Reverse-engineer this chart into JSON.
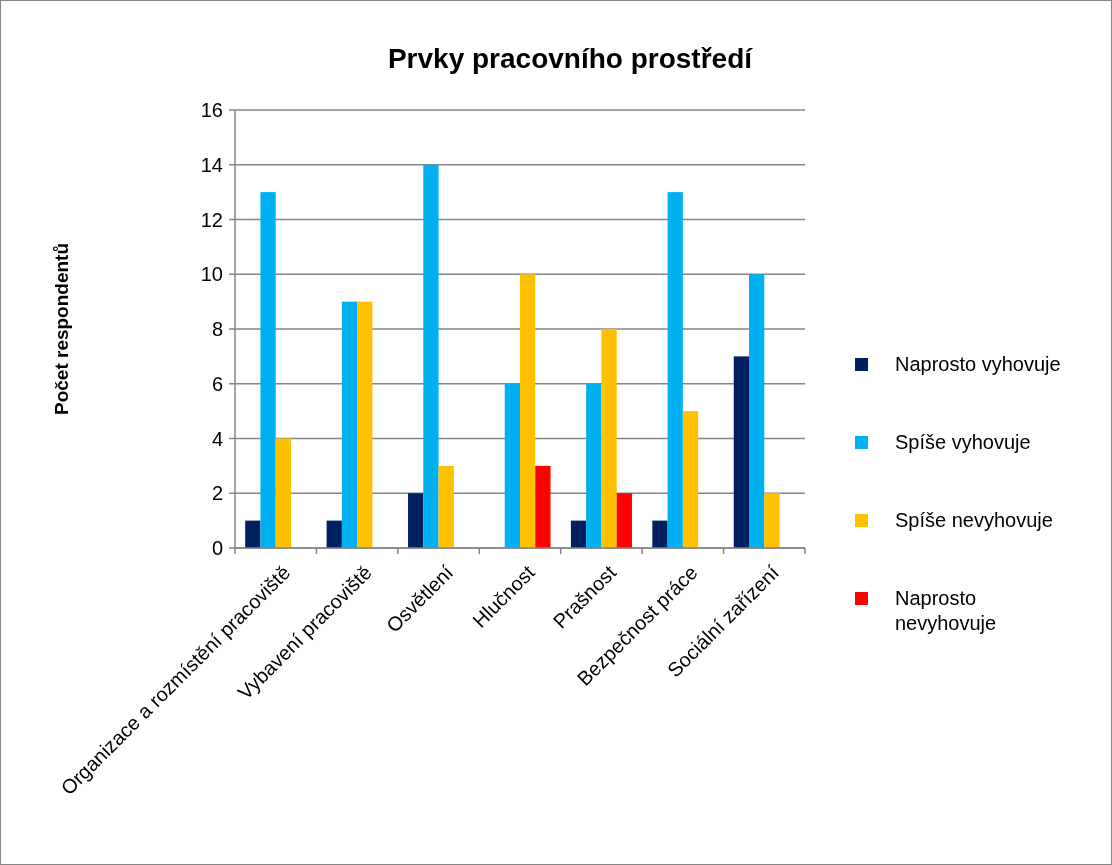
{
  "chart_data": {
    "type": "bar",
    "title": "Prvky pracovního prostředí",
    "ylabel": "Počet respondentů",
    "categories": [
      "Organizace a rozmístění pracoviště",
      "Vybavení pracoviště",
      "Osvětlení",
      "Hlučnost",
      "Prašnost",
      "Bezpečnost práce",
      "Sociální zařízení"
    ],
    "series": [
      {
        "name": "Naprosto vyhovuje",
        "color": "#002060",
        "values": [
          1,
          1,
          2,
          null,
          1,
          1,
          7
        ]
      },
      {
        "name": "Spíše vyhovuje",
        "color": "#00b0f0",
        "values": [
          13,
          9,
          14,
          6,
          6,
          13,
          10
        ]
      },
      {
        "name": "Spíše nevyhovuje",
        "color": "#ffc000",
        "values": [
          4,
          9,
          3,
          10,
          8,
          5,
          2
        ]
      },
      {
        "name": "Naprosto nevyhovuje",
        "color": "#ff0000",
        "values": [
          null,
          null,
          null,
          3,
          2,
          null,
          null
        ]
      }
    ],
    "ylim": [
      0,
      16
    ],
    "yticks": [
      0,
      2,
      4,
      6,
      8,
      10,
      12,
      14,
      16
    ],
    "grid": "y",
    "legend": "right"
  }
}
